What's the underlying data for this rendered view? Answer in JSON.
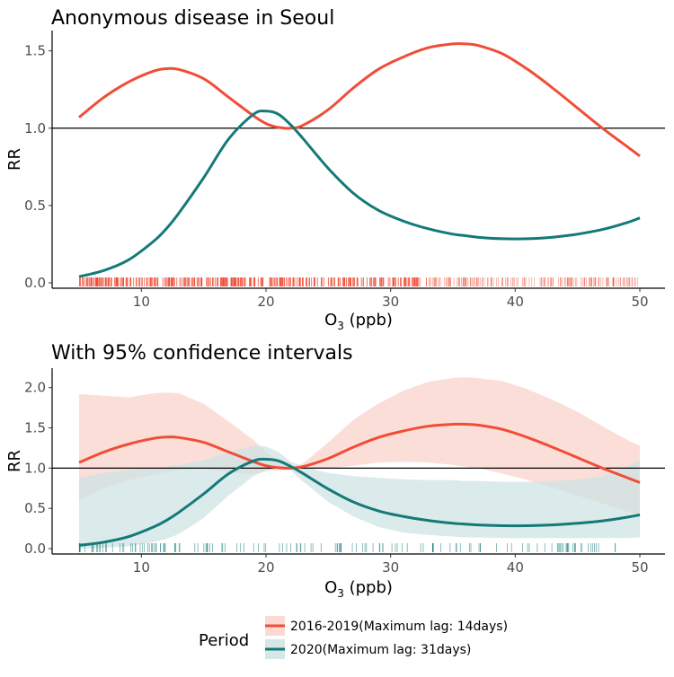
{
  "colors": {
    "period_2016": "#f04d37",
    "period_2020": "#137a78",
    "band_2016": "#fbd3cc",
    "band_2020": "#cfe3e3",
    "reference": "#000000"
  },
  "legend": {
    "title": "Period",
    "items": [
      {
        "label": "2016-2019(Maximum lag: 14days)"
      },
      {
        "label": "2020(Maximum lag: 31days)"
      }
    ]
  },
  "chart_data": [
    {
      "type": "line",
      "title": "Anonymous disease in Seoul",
      "xlabel": "O",
      "xlabel_sub": "3",
      "xlabel_unit": " (ppb)",
      "ylabel": "RR",
      "xlim": [
        5,
        50
      ],
      "ylim": [
        0,
        1.6
      ],
      "xticks": [
        10,
        20,
        30,
        40,
        50
      ],
      "xtick_labels": [
        "10",
        "20",
        "30",
        "40",
        "50"
      ],
      "yticks": [
        0,
        0.5,
        1,
        1.5
      ],
      "ytick_labels": [
        "0.0",
        "0.5",
        "1.0",
        "1.5"
      ],
      "reference_line": 1.0,
      "rug": {
        "series": "2016-2019(Maximum lag: 14days)",
        "range": [
          5,
          50
        ]
      },
      "x": [
        5,
        7,
        9,
        11,
        12,
        13,
        15,
        17,
        19,
        20,
        21,
        22,
        23,
        25,
        27,
        29,
        31,
        33,
        35,
        36,
        37,
        39,
        41,
        43,
        45,
        47,
        49,
        50
      ],
      "series": [
        {
          "name": "2016-2019(Maximum lag: 14days)",
          "values": [
            1.07,
            1.2,
            1.3,
            1.37,
            1.385,
            1.38,
            1.32,
            1.2,
            1.08,
            1.03,
            1.005,
            1.0,
            1.02,
            1.12,
            1.26,
            1.38,
            1.46,
            1.52,
            1.545,
            1.545,
            1.535,
            1.48,
            1.38,
            1.26,
            1.13,
            1.0,
            0.88,
            0.82
          ]
        },
        {
          "name": "2020(Maximum lag: 31days)",
          "values": [
            0.04,
            0.08,
            0.15,
            0.27,
            0.35,
            0.45,
            0.68,
            0.93,
            1.09,
            1.11,
            1.09,
            1.02,
            0.93,
            0.74,
            0.58,
            0.47,
            0.4,
            0.35,
            0.315,
            0.305,
            0.295,
            0.285,
            0.285,
            0.295,
            0.315,
            0.345,
            0.39,
            0.42
          ]
        }
      ]
    },
    {
      "type": "line",
      "title": "With 95% confidence intervals",
      "xlabel": "O",
      "xlabel_sub": "3",
      "xlabel_unit": " (ppb)",
      "ylabel": "RR",
      "xlim": [
        5,
        50
      ],
      "ylim": [
        0,
        2.2
      ],
      "xticks": [
        10,
        20,
        30,
        40,
        50
      ],
      "xtick_labels": [
        "10",
        "20",
        "30",
        "40",
        "50"
      ],
      "yticks": [
        0,
        0.5,
        1,
        1.5,
        2
      ],
      "ytick_labels": [
        "0.0",
        "0.5",
        "1.0",
        "1.5",
        "2.0"
      ],
      "reference_line": 1.0,
      "rug": {
        "series": "2020(Maximum lag: 31days)",
        "range": [
          5,
          49
        ]
      },
      "x": [
        5,
        7,
        9,
        11,
        12,
        13,
        15,
        17,
        19,
        20,
        21,
        22,
        23,
        25,
        27,
        29,
        31,
        33,
        35,
        36,
        37,
        39,
        41,
        43,
        45,
        47,
        49,
        50
      ],
      "series": [
        {
          "name": "2016-2019(Maximum lag: 14days)",
          "values": [
            1.07,
            1.2,
            1.3,
            1.37,
            1.385,
            1.38,
            1.32,
            1.2,
            1.08,
            1.03,
            1.005,
            1.0,
            1.02,
            1.12,
            1.26,
            1.38,
            1.46,
            1.52,
            1.545,
            1.545,
            1.535,
            1.48,
            1.38,
            1.26,
            1.13,
            1.0,
            0.88,
            0.82
          ],
          "lower": [
            0.6,
            0.75,
            0.85,
            0.92,
            0.95,
            0.98,
            1.0,
            0.95,
            0.92,
            0.96,
            0.98,
            0.99,
            0.99,
            1.0,
            1.03,
            1.07,
            1.08,
            1.07,
            1.04,
            1.02,
            1.0,
            0.93,
            0.85,
            0.76,
            0.66,
            0.56,
            0.46,
            0.42
          ],
          "upper": [
            1.92,
            1.9,
            1.88,
            1.93,
            1.94,
            1.93,
            1.8,
            1.58,
            1.35,
            1.2,
            1.1,
            1.02,
            1.06,
            1.32,
            1.6,
            1.8,
            1.96,
            2.07,
            2.12,
            2.13,
            2.12,
            2.08,
            1.98,
            1.85,
            1.7,
            1.52,
            1.35,
            1.28
          ]
        },
        {
          "name": "2020(Maximum lag: 31days)",
          "values": [
            0.04,
            0.08,
            0.15,
            0.27,
            0.35,
            0.45,
            0.68,
            0.93,
            1.09,
            1.11,
            1.09,
            1.02,
            0.93,
            0.74,
            0.58,
            0.47,
            0.4,
            0.35,
            0.315,
            0.305,
            0.295,
            0.285,
            0.285,
            0.295,
            0.315,
            0.345,
            0.39,
            0.42
          ],
          "lower": [
            0.0,
            0.01,
            0.03,
            0.08,
            0.12,
            0.18,
            0.38,
            0.66,
            0.9,
            0.97,
            0.99,
            0.97,
            0.83,
            0.58,
            0.4,
            0.27,
            0.2,
            0.17,
            0.15,
            0.14,
            0.14,
            0.13,
            0.13,
            0.13,
            0.13,
            0.13,
            0.13,
            0.14
          ],
          "upper": [
            0.88,
            0.94,
            0.98,
            1.0,
            1.02,
            1.04,
            1.1,
            1.2,
            1.28,
            1.27,
            1.2,
            1.08,
            1.02,
            0.94,
            0.9,
            0.88,
            0.86,
            0.85,
            0.85,
            0.84,
            0.84,
            0.83,
            0.83,
            0.84,
            0.86,
            0.9,
            1.02,
            1.1
          ]
        }
      ]
    }
  ]
}
